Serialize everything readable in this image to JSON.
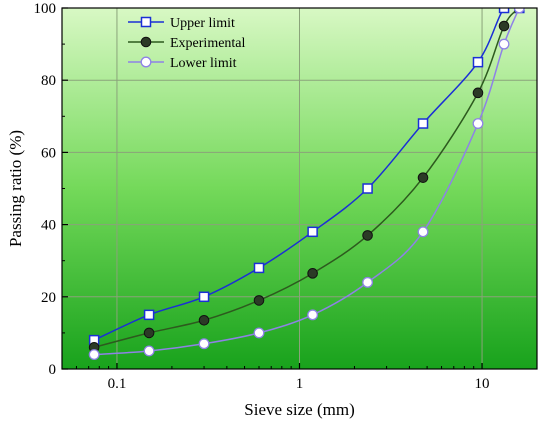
{
  "chart_data": {
    "type": "line",
    "xlabel": "Sieve size (mm)",
    "ylabel": "Passing ratio (%)",
    "xscale": "log",
    "xlim": [
      0.05,
      20
    ],
    "ylim": [
      0,
      100
    ],
    "xticks": [
      {
        "value": 0.1,
        "label": "0.1"
      },
      {
        "value": 1,
        "label": "1"
      },
      {
        "value": 10,
        "label": "10"
      }
    ],
    "yticks": [
      {
        "value": 0,
        "label": "0"
      },
      {
        "value": 20,
        "label": "20"
      },
      {
        "value": 40,
        "label": "40"
      },
      {
        "value": 60,
        "label": "60"
      },
      {
        "value": 80,
        "label": "80"
      },
      {
        "value": 100,
        "label": "100"
      }
    ],
    "grid": true,
    "legend_position": "top-left",
    "background": "green vertical gradient",
    "series": [
      {
        "name": "Upper limit",
        "marker": "square-open",
        "color": "#1a2fd6",
        "x": [
          0.075,
          0.15,
          0.3,
          0.6,
          1.18,
          2.36,
          4.75,
          9.5,
          13.2,
          16
        ],
        "y": [
          8,
          15,
          20,
          28,
          38,
          50,
          68,
          85,
          100,
          100
        ]
      },
      {
        "name": "Experimental",
        "marker": "circle-filled",
        "color": "#2d5a1e",
        "x": [
          0.075,
          0.15,
          0.3,
          0.6,
          1.18,
          2.36,
          4.75,
          9.5,
          13.2,
          16
        ],
        "y": [
          6,
          10,
          13.5,
          19,
          26.5,
          37,
          53,
          76.5,
          95,
          100
        ]
      },
      {
        "name": "Lower limit",
        "marker": "circle-open",
        "color": "#8e82e6",
        "x": [
          0.075,
          0.15,
          0.3,
          0.6,
          1.18,
          2.36,
          4.75,
          9.5,
          13.2,
          16
        ],
        "y": [
          4,
          5,
          7,
          10,
          15,
          24,
          38,
          68,
          90,
          100
        ]
      }
    ]
  }
}
